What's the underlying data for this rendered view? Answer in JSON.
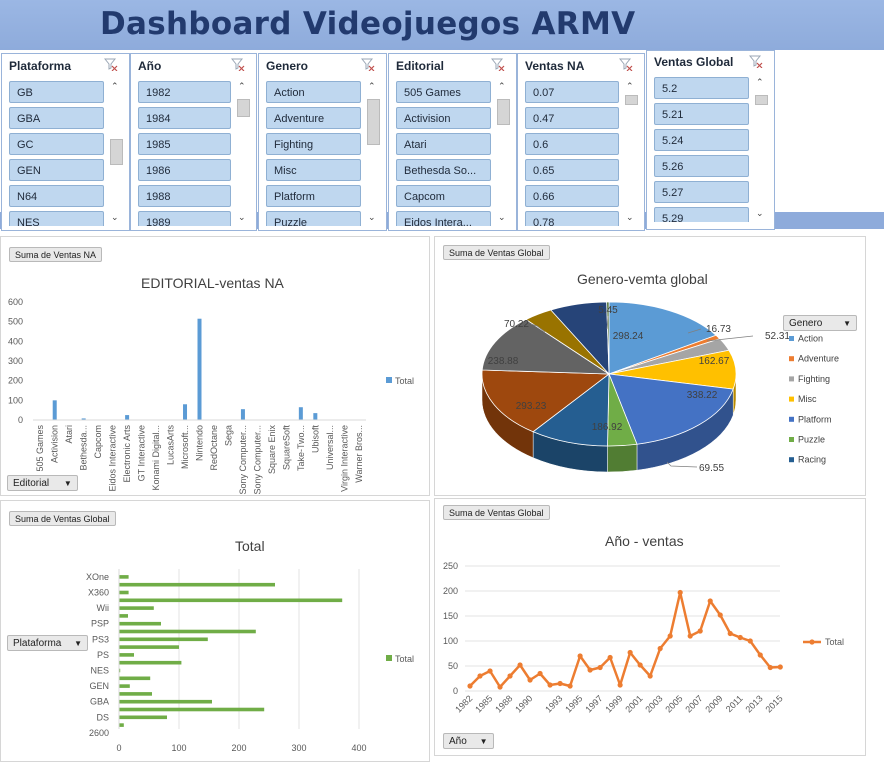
{
  "dashboard_title": "Dashboard Videojuegos ARMV",
  "slicers": [
    {
      "title": "Plataforma",
      "items": [
        "GB",
        "GBA",
        "GC",
        "GEN",
        "N64",
        "NES"
      ]
    },
    {
      "title": "Año",
      "items": [
        "1982",
        "1984",
        "1985",
        "1986",
        "1988",
        "1989"
      ]
    },
    {
      "title": "Genero",
      "items": [
        "Action",
        "Adventure",
        "Fighting",
        "Misc",
        "Platform",
        "Puzzle"
      ]
    },
    {
      "title": "Editorial",
      "items": [
        "505 Games",
        "Activision",
        "Atari",
        "Bethesda So...",
        "Capcom",
        "Eidos Intera..."
      ]
    },
    {
      "title": "Ventas NA",
      "items": [
        "0.07",
        "0.47",
        "0.6",
        "0.65",
        "0.66",
        "0.78"
      ]
    },
    {
      "title": "Ventas Global",
      "items": [
        "5.2",
        "5.21",
        "5.24",
        "5.26",
        "5.27",
        "5.29"
      ]
    }
  ],
  "icons": {
    "clear_filter": "clear-filter-icon",
    "scroll_up": "chevron-up-icon",
    "scroll_down": "chevron-down-icon",
    "dropdown": "dropdown-arrow-icon"
  },
  "chart1": {
    "field_button": "Suma de Ventas NA",
    "axis_field": "Editorial",
    "chart_data": {
      "type": "bar",
      "title": "EDITORIAL-ventas NA",
      "categories": [
        "505 Games",
        "Activision",
        "Atari",
        "Bethesda...",
        "Capcom",
        "Eidos Interactive",
        "Electronic Arts",
        "GT Interactive",
        "Konami Digital...",
        "LucasArts",
        "Microsoft...",
        "Nintendo",
        "RedOctane",
        "Sega",
        "Sony Computer...",
        "Sony Computer...",
        "Square Enix",
        "SquareSoft",
        "Take-Two...",
        "Ubisoft",
        "Universal...",
        "Virgin Interactive",
        "Warner Bros..."
      ],
      "series": [
        {
          "name": "Total",
          "values": [
            0,
            100,
            0,
            8,
            0,
            0,
            25,
            0,
            0,
            0,
            80,
            515,
            0,
            0,
            55,
            0,
            0,
            0,
            65,
            35,
            0,
            0,
            0
          ]
        }
      ],
      "yticks": [
        "0",
        "100",
        "200",
        "300",
        "400",
        "500",
        "600"
      ],
      "ylim": [
        0,
        600
      ],
      "legend": "right",
      "color": "#5b9bd5"
    }
  },
  "chart2": {
    "field_button": "Suma de Ventas Global",
    "legend_field": "Genero",
    "chart_data": {
      "type": "pie",
      "title": "Genero-vemta global",
      "slices": [
        {
          "label": "Action",
          "value": 298.24,
          "color": "#5b9bd5"
        },
        {
          "label": "Adventure",
          "value": 16.73,
          "color": "#ed7d31"
        },
        {
          "label": "Fighting",
          "value": 52.31,
          "color": "#a5a5a5"
        },
        {
          "label": "Misc",
          "value": 162.67,
          "color": "#ffc000"
        },
        {
          "label": "Platform",
          "value": 338.22,
          "color": "#4472c4"
        },
        {
          "label": "Puzzle",
          "value": 69.55,
          "color": "#70ad47"
        },
        {
          "label": "Racing",
          "value": 186.92,
          "color": "#255e91"
        },
        {
          "label": "",
          "value": 293.23,
          "color": "#9e480e"
        },
        {
          "label": "",
          "value": 238.88,
          "color": "#636363"
        },
        {
          "label": "",
          "value": 70.22,
          "color": "#997300"
        },
        {
          "label": "",
          "value": 136.0,
          "color": "#264478"
        },
        {
          "label": "",
          "value": 5.45,
          "color": "#43682b"
        }
      ],
      "legend_entries": [
        "Action",
        "Adventure",
        "Fighting",
        "Misc",
        "Platform",
        "Puzzle",
        "Racing"
      ],
      "legend": "right"
    }
  },
  "chart3": {
    "field_button": "Suma de Ventas Global",
    "axis_field": "Plataforma",
    "chart_data": {
      "type": "bar",
      "orientation": "horizontal",
      "title": "Total",
      "categories": [
        "2600",
        "DS",
        "",
        "GBA",
        "",
        "GEN",
        "",
        "NES",
        "",
        "PS",
        "",
        "PS3",
        "",
        "PSP",
        "",
        "Wii",
        "",
        "X360",
        "",
        "XOne"
      ],
      "series": [
        {
          "name": "Total",
          "values": [
            8,
            80,
            242,
            155,
            55,
            18,
            52,
            2,
            104,
            25,
            100,
            148,
            228,
            70,
            15,
            58,
            372,
            16,
            260,
            16
          ]
        }
      ],
      "yticks": [
        "XOne",
        "X360",
        "Wii",
        "PSP",
        "PS3",
        "PS",
        "NES",
        "GEN",
        "GBA",
        "DS",
        "2600"
      ],
      "xticks": [
        "0",
        "100",
        "200",
        "300",
        "400"
      ],
      "xlim": [
        0,
        450
      ],
      "legend": "right",
      "color": "#70ad47"
    }
  },
  "chart4": {
    "field_button": "Suma de Ventas Global",
    "axis_field": "Año",
    "chart_data": {
      "type": "line",
      "title": "Año - ventas",
      "x": [
        "1982",
        "1984",
        "1985",
        "1986",
        "1988",
        "1989",
        "1990",
        "1991",
        "1992",
        "1993",
        "1994",
        "1995",
        "1996",
        "1997",
        "1998",
        "1999",
        "2000",
        "2001",
        "2002",
        "2003",
        "2004",
        "2005",
        "2006",
        "2007",
        "2008",
        "2009",
        "2010",
        "2011",
        "2012",
        "2013",
        "2014",
        "2015"
      ],
      "xticks": [
        "1982",
        "1985",
        "1988",
        "1990",
        "1993",
        "1995",
        "1997",
        "1999",
        "2001",
        "2003",
        "2005",
        "2007",
        "2009",
        "2011",
        "2013",
        "2015"
      ],
      "series": [
        {
          "name": "Total",
          "values": [
            10,
            30,
            40,
            8,
            30,
            52,
            22,
            35,
            12,
            15,
            10,
            70,
            42,
            47,
            67,
            12,
            77,
            52,
            30,
            85,
            110,
            197,
            110,
            120,
            180,
            152,
            115,
            107,
            100,
            72,
            47,
            48
          ]
        }
      ],
      "yticks": [
        "0",
        "50",
        "100",
        "150",
        "200",
        "250"
      ],
      "ylim": [
        0,
        250
      ],
      "legend": "right",
      "color": "#ed7d31"
    }
  },
  "legend_total": "Total"
}
